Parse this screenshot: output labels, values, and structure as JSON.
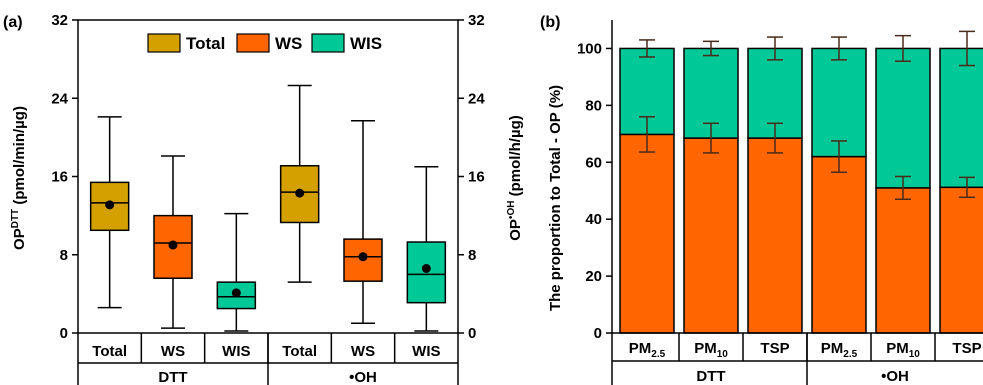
{
  "chart_data": [
    {
      "type": "box",
      "panel_label": "(a)",
      "ylabel_left": "OP",
      "ylabel_left_sup": "DTT",
      "ylabel_left_unit": " (pmol/min/µg)",
      "ylabel_right": "OP",
      "ylabel_right_sup": "•OH",
      "ylabel_right_unit": " (pmol/h/µg)",
      "ylim": [
        0,
        32
      ],
      "yticks": [
        0,
        8,
        16,
        24,
        32
      ],
      "legend_position": "top",
      "legend": [
        {
          "label": "Total",
          "color": "#d4a000"
        },
        {
          "label": "WS",
          "color": "#ff6600"
        },
        {
          "label": "WIS",
          "color": "#00c896"
        }
      ],
      "categories": [
        "Total",
        "WS",
        "WIS",
        "Total",
        "WS",
        "WIS"
      ],
      "groups": [
        {
          "label": "DTT",
          "span": 3
        },
        {
          "label": "•OH",
          "span": 3
        }
      ],
      "boxes": [
        {
          "category": "Total",
          "group": "DTT",
          "color": "#d4a000",
          "min": 2.6,
          "q1": 10.5,
          "median": 13.3,
          "q3": 15.4,
          "max": 22.1,
          "mean": 13.1
        },
        {
          "category": "WS",
          "group": "DTT",
          "color": "#ff6600",
          "min": 0.5,
          "q1": 5.6,
          "median": 9.2,
          "q3": 12.0,
          "max": 18.1,
          "mean": 9.0
        },
        {
          "category": "WIS",
          "group": "DTT",
          "color": "#00c896",
          "min": 0.2,
          "q1": 2.5,
          "median": 3.7,
          "q3": 5.2,
          "max": 12.2,
          "mean": 4.1
        },
        {
          "category": "Total",
          "group": "•OH",
          "color": "#d4a000",
          "min": 5.2,
          "q1": 11.3,
          "median": 14.4,
          "q3": 17.1,
          "max": 25.3,
          "mean": 14.3
        },
        {
          "category": "WS",
          "group": "•OH",
          "color": "#ff6600",
          "min": 1.0,
          "q1": 5.3,
          "median": 7.8,
          "q3": 9.6,
          "max": 21.7,
          "mean": 7.8
        },
        {
          "category": "WIS",
          "group": "•OH",
          "color": "#00c896",
          "min": 0.2,
          "q1": 3.1,
          "median": 6.0,
          "q3": 9.3,
          "max": 17.0,
          "mean": 6.6
        }
      ]
    },
    {
      "type": "stacked_bar",
      "panel_label": "(b)",
      "ylabel": "The proportion to Total - OP (%)",
      "ylim": [
        0,
        110
      ],
      "yticks": [
        0,
        20,
        40,
        60,
        80,
        100
      ],
      "categories": [
        {
          "main": "PM",
          "sub": "2.5"
        },
        {
          "main": "PM",
          "sub": "10"
        },
        {
          "main": "TSP",
          "sub": ""
        },
        {
          "main": "PM",
          "sub": "2.5"
        },
        {
          "main": "PM",
          "sub": "10"
        },
        {
          "main": "TSP",
          "sub": ""
        }
      ],
      "groups": [
        {
          "label": "DTT",
          "span": 3
        },
        {
          "label": "•OH",
          "span": 3
        }
      ],
      "series": [
        {
          "key": "WS",
          "color": "#ff6600",
          "values": [
            69.8,
            68.5,
            68.5,
            62.0,
            51.0,
            51.2
          ],
          "err": [
            6.2,
            5.2,
            5.2,
            5.5,
            4.0,
            3.5
          ]
        },
        {
          "key": "WIS",
          "color": "#00c896",
          "values": [
            30.2,
            31.5,
            31.5,
            38.0,
            49.0,
            48.8
          ],
          "err_top": [
            3.0,
            2.5,
            4.0,
            4.0,
            4.5,
            6.0
          ]
        }
      ]
    }
  ]
}
